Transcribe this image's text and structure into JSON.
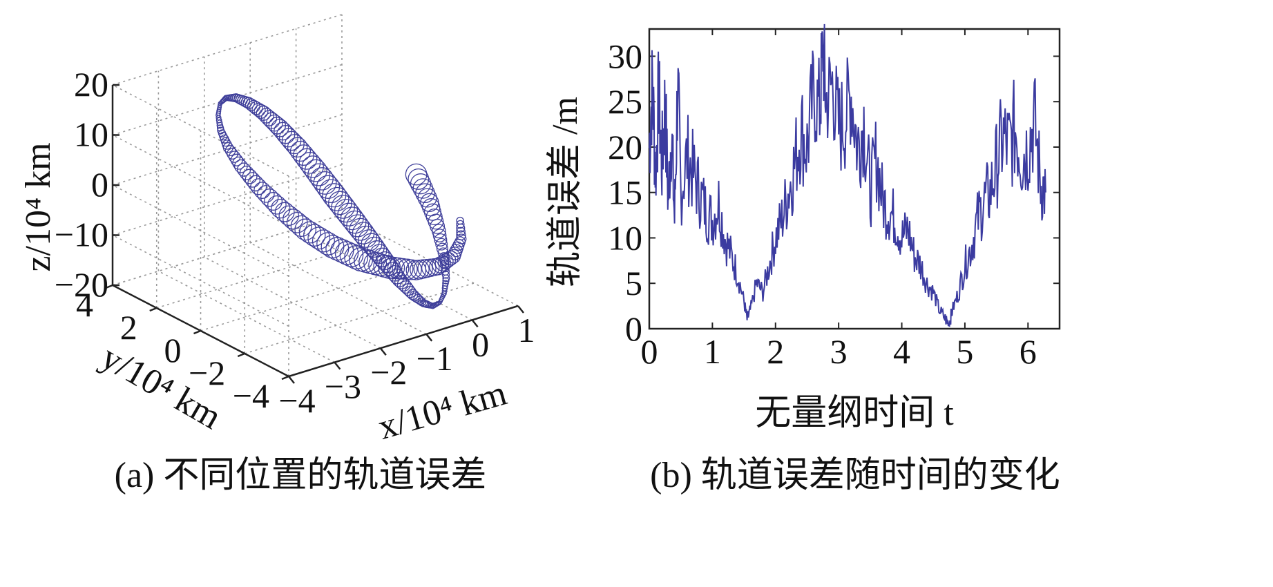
{
  "chart_data": [
    {
      "panel": "a",
      "type": "scatter",
      "caption": "(a) 不同位置的轨道误差",
      "xlabel": "x/10⁴ km",
      "ylabel": "y/10⁴ km",
      "zlabel": "z/10⁴ km",
      "xlim": [
        -4,
        1
      ],
      "ylim": [
        -4,
        4
      ],
      "zlim": [
        -20,
        20
      ],
      "x_ticks": [
        "−4",
        "−3",
        "−2",
        "−1",
        "0",
        "1"
      ],
      "y_ticks": [
        "−4",
        "−2",
        "0",
        "2",
        "4"
      ],
      "z_ticks": [
        "−20",
        "−10",
        "0",
        "10",
        "20"
      ],
      "grid": true,
      "series": [
        {
          "x": [
            0.7,
            0.67,
            0.57,
            0.41,
            0.22,
            -0.01,
            -0.25,
            -0.5,
            -0.75,
            -1.0,
            -1.25,
            -1.48,
            -1.69,
            -1.87,
            -2.03,
            -2.16,
            -2.26,
            -2.32,
            -2.35,
            -2.35,
            -2.32,
            -2.26,
            -2.16,
            -2.03,
            -1.87,
            -1.69,
            -1.48,
            -1.25,
            -1.0,
            -0.75,
            -0.5,
            -0.25,
            -0.01,
            0.22,
            0.41,
            0.57,
            0.67,
            0.7
          ],
          "y": [
            0,
            -0.67,
            -1.3,
            -1.87,
            -2.36,
            -2.75,
            -3.05,
            -3.25,
            -3.36,
            -3.38,
            -3.3,
            -3.12,
            -2.83,
            -2.44,
            -1.96,
            -1.4,
            -0.77,
            -0.1,
            0.58,
            1.25,
            1.89,
            2.47,
            2.95,
            3.31,
            3.52,
            3.56,
            3.42,
            3.1,
            2.62,
            2.01,
            1.3,
            0.53,
            -0.26,
            -0.99,
            -1.58,
            -1.97,
            -2.11,
            -1.98
          ],
          "z": [
            -2,
            -6,
            -10,
            -13.5,
            -16,
            -17.5,
            -18,
            -17.5,
            -16,
            -13.5,
            -10,
            -6,
            -2,
            2,
            6,
            10,
            13.5,
            16,
            17.5,
            18,
            17.5,
            16,
            13.5,
            10,
            6,
            2,
            -2,
            -6,
            -10,
            -13.5,
            -16,
            -17.5,
            -18,
            -17.5,
            -16,
            -13.5,
            -10,
            -6
          ],
          "error": [
            24,
            20,
            14,
            9,
            5,
            2,
            1,
            3,
            6,
            10,
            15,
            20,
            24,
            26,
            27,
            25,
            22,
            19,
            15,
            11,
            7,
            3,
            1,
            2,
            5,
            9,
            13,
            17,
            21,
            24,
            26,
            27,
            25,
            22,
            18,
            14,
            9,
            5
          ]
        }
      ]
    },
    {
      "panel": "b",
      "type": "line",
      "caption": "(b) 轨道误差随时间的变化",
      "xlabel": "无量纲时间 t",
      "ylabel": "轨道误差 /m",
      "xlim": [
        0,
        6.5
      ],
      "ylim": [
        0,
        33
      ],
      "x_ticks": [
        "0",
        "1",
        "2",
        "3",
        "4",
        "5",
        "6"
      ],
      "y_ticks": [
        "0",
        "5",
        "10",
        "15",
        "20",
        "25",
        "30"
      ],
      "grid": false,
      "series": [
        {
          "x": [
            0,
            0.05,
            0.1,
            0.15,
            0.2,
            0.25,
            0.3,
            0.35,
            0.4,
            0.45,
            0.5,
            0.6,
            0.7,
            0.8,
            0.9,
            1.0,
            1.1,
            1.2,
            1.3,
            1.4,
            1.5,
            1.55,
            1.6,
            1.7,
            1.8,
            1.9,
            2.0,
            2.1,
            2.2,
            2.3,
            2.4,
            2.5,
            2.6,
            2.7,
            2.75,
            2.8,
            2.9,
            3.0,
            3.1,
            3.2,
            3.3,
            3.4,
            3.5,
            3.6,
            3.7,
            3.8,
            3.9,
            4.0,
            4.1,
            4.2,
            4.3,
            4.4,
            4.5,
            4.6,
            4.7,
            4.75,
            4.8,
            4.9,
            5.0,
            5.1,
            5.2,
            5.3,
            5.4,
            5.5,
            5.6,
            5.7,
            5.8,
            5.9,
            6.0,
            6.1,
            6.2,
            6.28
          ],
          "y": [
            20,
            27,
            17,
            26,
            18,
            25,
            14,
            22,
            12,
            27,
            15,
            19,
            17,
            15,
            13,
            12,
            14,
            10,
            8,
            6,
            3,
            1,
            2,
            5,
            4,
            7,
            10,
            12,
            15,
            18,
            22,
            20,
            26,
            24,
            31,
            25,
            27,
            22,
            23,
            26,
            20,
            23,
            15,
            19,
            14,
            13,
            12,
            10,
            11,
            8,
            7,
            5,
            4,
            2,
            1,
            0.5,
            2,
            4,
            7,
            9,
            12,
            14,
            15,
            18,
            21,
            20,
            22,
            19,
            20,
            23,
            16,
            15
          ]
        }
      ]
    }
  ]
}
